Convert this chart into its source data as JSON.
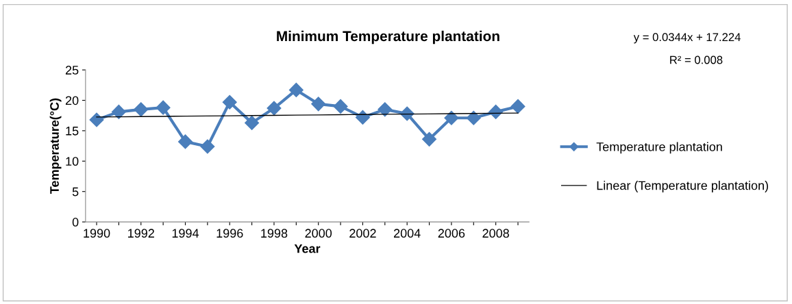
{
  "chart_data": {
    "type": "line",
    "title": "Minimum Temperature plantation",
    "xlabel": "Year",
    "ylabel": "Temperature(°C)",
    "categories": [
      "1990",
      null,
      "1992",
      null,
      "1994",
      null,
      "1996",
      null,
      "1998",
      null,
      "2000",
      null,
      "2002",
      null,
      "2004",
      null,
      "2006",
      null,
      "2008",
      null
    ],
    "series": [
      {
        "name": "Temperature plantation",
        "color": "#4a7ebb",
        "marker": "diamond",
        "values": [
          16.8,
          18.1,
          18.5,
          18.8,
          13.2,
          12.4,
          19.7,
          16.3,
          18.7,
          21.7,
          19.4,
          19.0,
          17.2,
          18.5,
          17.8,
          13.6,
          17.1,
          17.1,
          18.1,
          19.0
        ]
      },
      {
        "name": "Linear (Temperature plantation)",
        "color": "#000000",
        "marker": "none",
        "values": [
          17.26,
          17.29,
          17.33,
          17.36,
          17.4,
          17.43,
          17.46,
          17.5,
          17.53,
          17.57,
          17.6,
          17.64,
          17.67,
          17.71,
          17.74,
          17.77,
          17.81,
          17.84,
          17.88,
          17.91
        ]
      }
    ],
    "ylim": [
      0,
      25
    ],
    "yticks": [
      0,
      5,
      10,
      15,
      20,
      25
    ],
    "grid": false,
    "legend": "right",
    "annotations": [
      "y = 0.0344x + 17.224",
      "R² = 0.008"
    ]
  }
}
